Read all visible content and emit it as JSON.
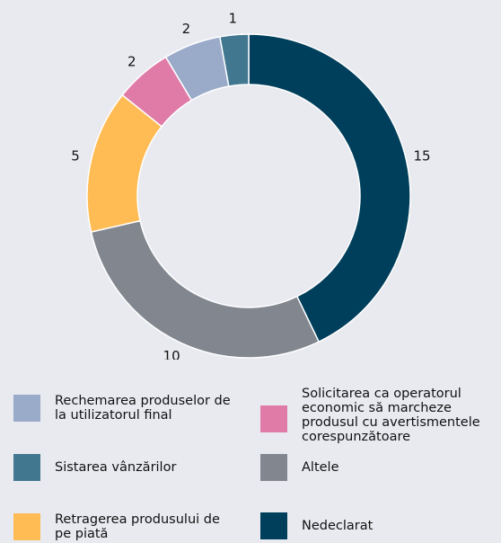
{
  "chart_data": {
    "type": "donut",
    "categories": [
      "Nedeclarat",
      "Altele",
      "Retragerea produsului de pe piată",
      "Solicitarea ca operatorul economic să marcheze produsul cu avertismentele corespunzătoare",
      "Rechemarea produselor de la utilizatorul final",
      "Sistarea vânzărilor"
    ],
    "values": [
      15,
      10,
      5,
      2,
      2,
      1
    ],
    "colors": [
      "#003f5c",
      "#81868f",
      "#ffbc55",
      "#e07ba8",
      "#9aaac9",
      "#41778f"
    ]
  }
}
